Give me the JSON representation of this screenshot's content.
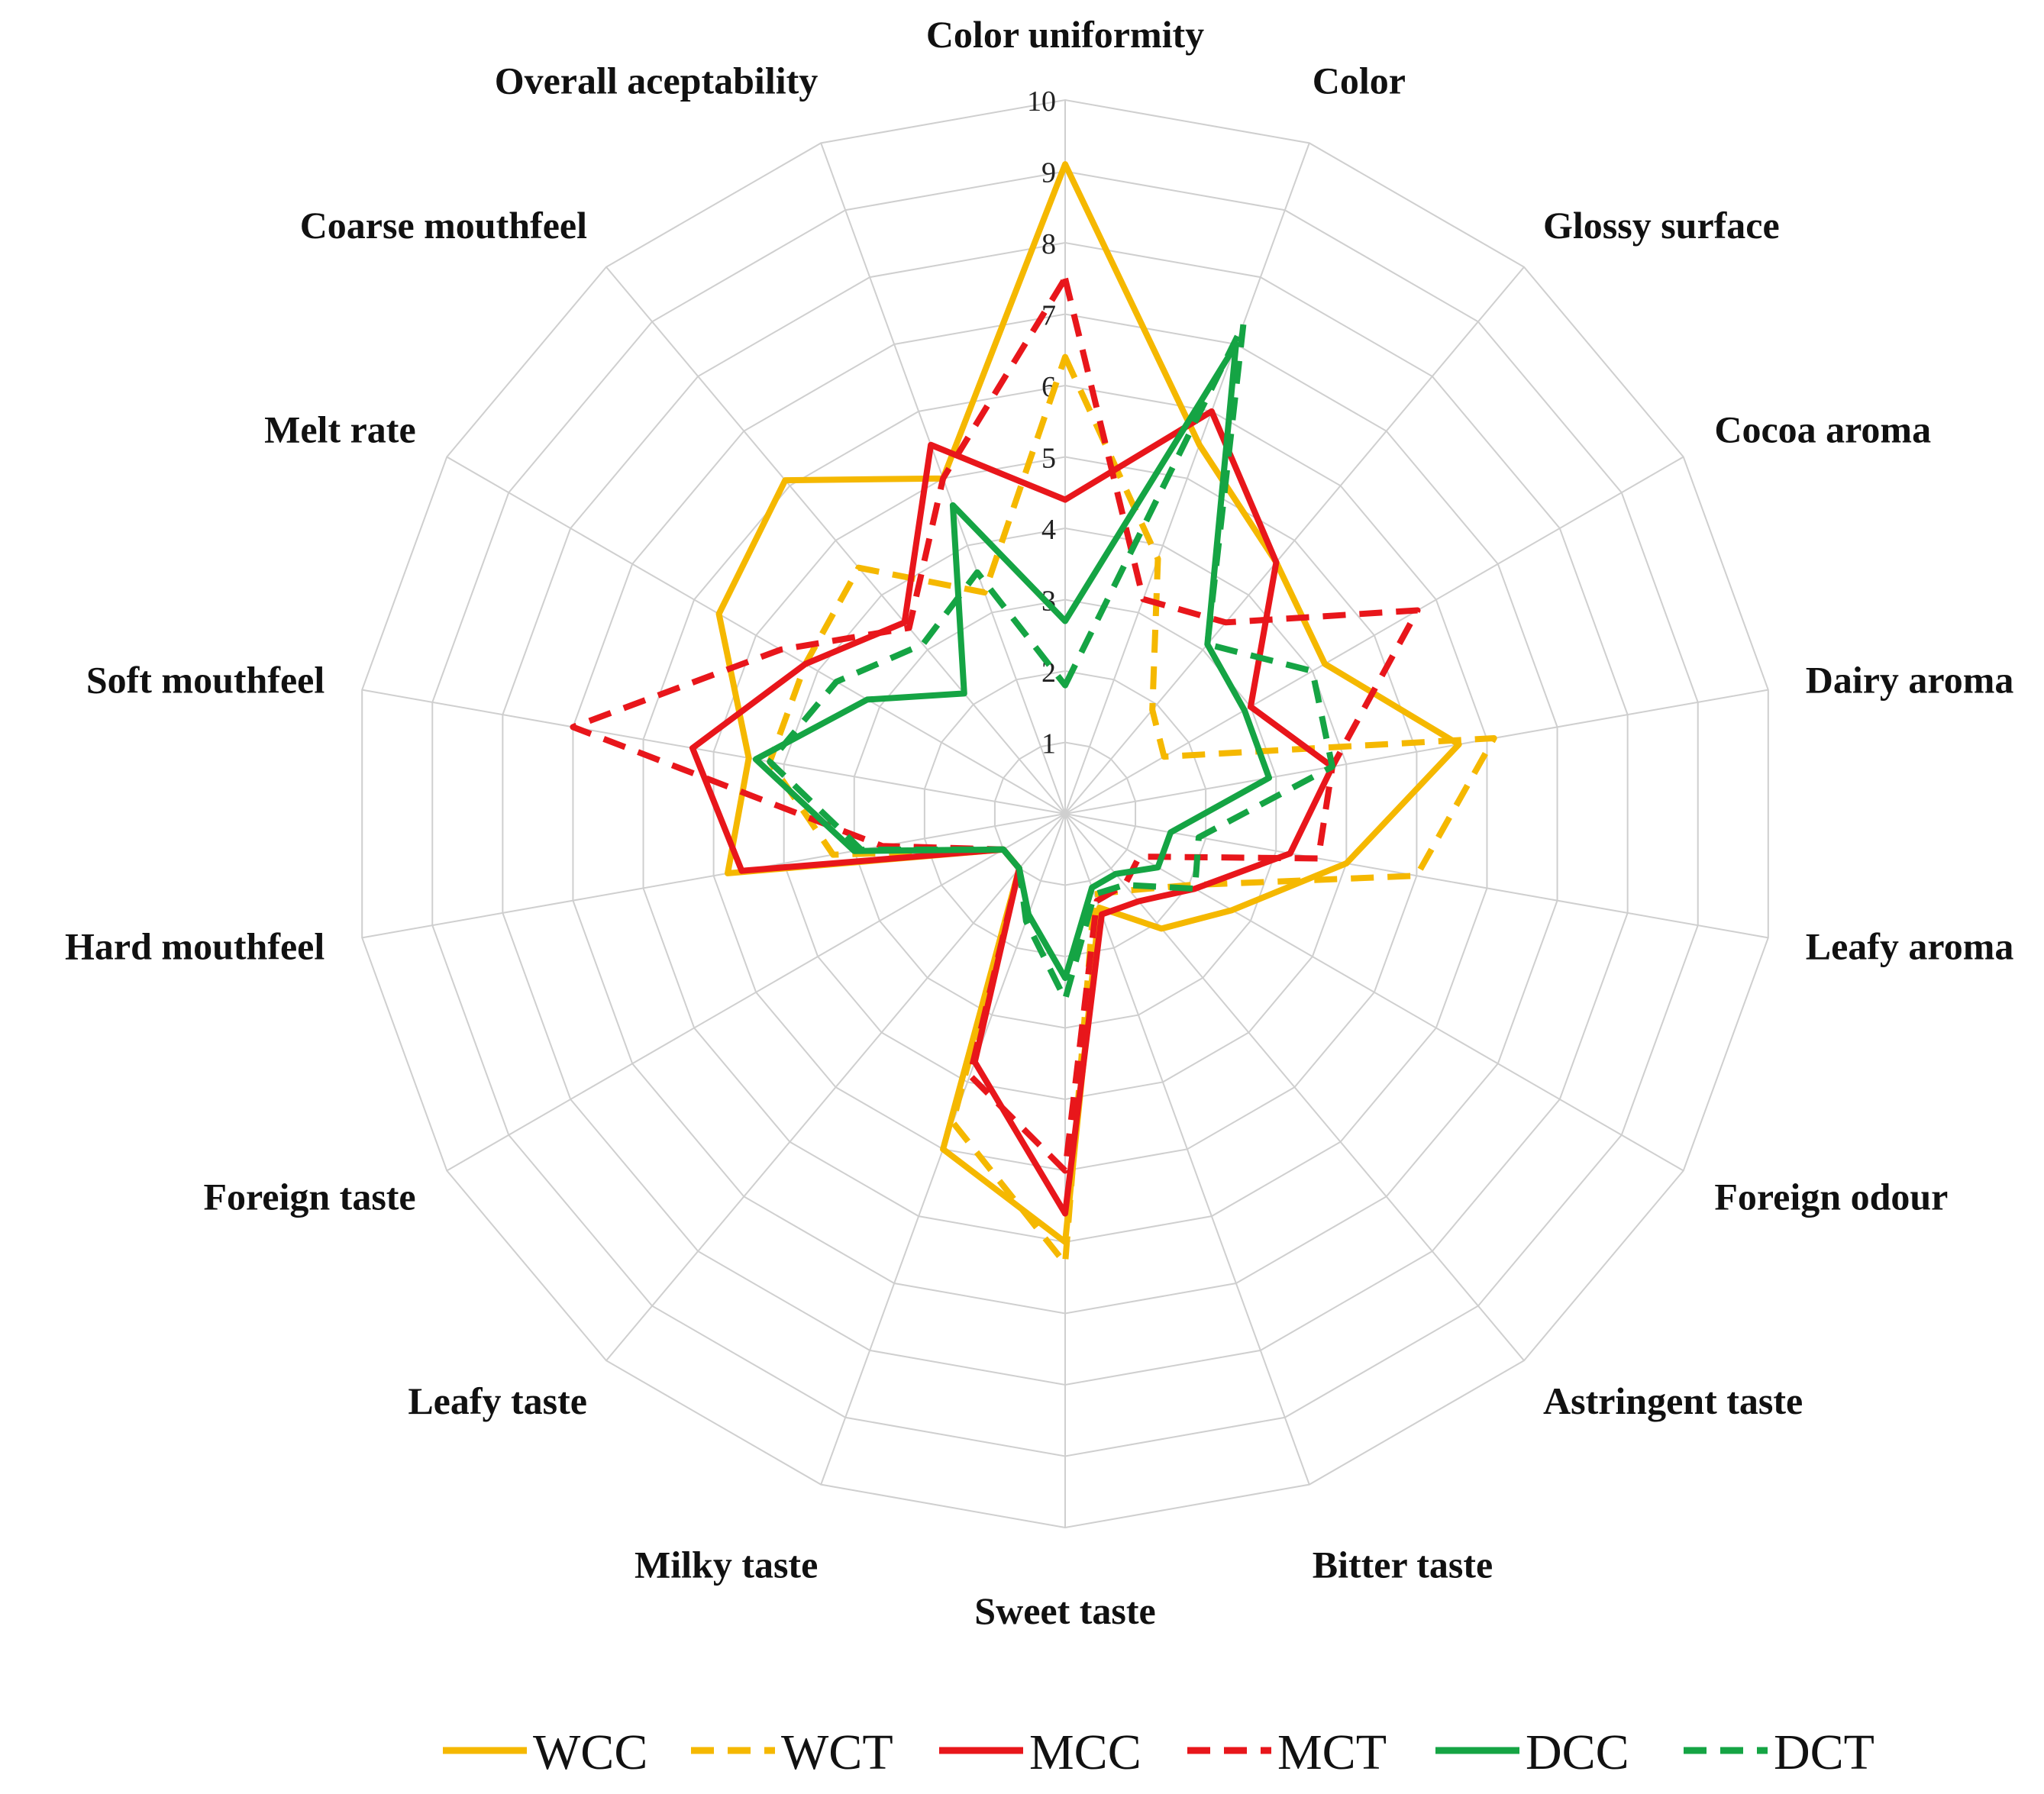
{
  "chart_data": {
    "type": "radar",
    "axes": [
      "Color uniformity",
      "Color",
      "Glossy surface",
      "Cocoa aroma",
      "Dairy aroma",
      "Leafy aroma",
      "Foreign odour",
      "Astringent taste",
      "Bitter taste",
      "Sweet taste",
      "Milky taste",
      "Leafy taste",
      "Foreign taste",
      "Hard mouthfeel",
      "Soft mouthfeel",
      "Melt rate",
      "Coarse mouthfeel",
      "Overall aceptability"
    ],
    "ticks": [
      "1",
      "2",
      "3",
      "4",
      "5",
      "6",
      "7",
      "8",
      "9",
      "10"
    ],
    "range": [
      0,
      10
    ],
    "legend_position": "bottom",
    "series": [
      {
        "name": "WCC",
        "color": "#F5B800",
        "dash": "solid",
        "values": [
          9.1,
          5.5,
          4.6,
          4.2,
          5.6,
          4.0,
          2.7,
          2.1,
          1.4,
          6.0,
          5.0,
          1.0,
          1.0,
          4.8,
          4.5,
          5.6,
          6.1,
          5.0
        ]
      },
      {
        "name": "WCT",
        "color": "#F5B800",
        "dash": "dashed",
        "values": [
          6.4,
          3.8,
          1.9,
          1.6,
          6.1,
          5.0,
          2.0,
          1.4,
          1.2,
          6.3,
          4.6,
          1.0,
          1.0,
          3.3,
          4.2,
          4.2,
          4.5,
          3.3
        ]
      },
      {
        "name": "MCC",
        "color": "#E8161B",
        "dash": "solid",
        "values": [
          4.4,
          6.0,
          4.6,
          3.0,
          3.8,
          3.2,
          2.1,
          1.6,
          1.5,
          5.6,
          3.7,
          1.0,
          1.0,
          4.6,
          5.3,
          4.2,
          3.5,
          5.5
        ]
      },
      {
        "name": "MCT",
        "color": "#E8161B",
        "dash": "dashed",
        "values": [
          7.5,
          3.2,
          3.5,
          5.7,
          3.8,
          3.6,
          1.2,
          1.3,
          1.3,
          5.0,
          3.9,
          1.0,
          1.0,
          2.6,
          7.0,
          4.6,
          3.4,
          5.0
        ]
      },
      {
        "name": "DCC",
        "color": "#15A444",
        "dash": "solid",
        "values": [
          2.7,
          7.0,
          3.1,
          2.9,
          2.9,
          1.5,
          1.5,
          1.1,
          1.1,
          2.3,
          1.5,
          1.0,
          1.0,
          3.0,
          4.4,
          3.2,
          2.2,
          4.6
        ]
      },
      {
        "name": "DCT",
        "color": "#15A444",
        "dash": "dashed",
        "values": [
          1.8,
          7.3,
          3.1,
          4.0,
          3.8,
          1.9,
          2.1,
          1.3,
          1.2,
          2.6,
          1.6,
          1.0,
          1.0,
          2.9,
          4.2,
          3.7,
          3.1,
          3.6
        ]
      }
    ]
  }
}
